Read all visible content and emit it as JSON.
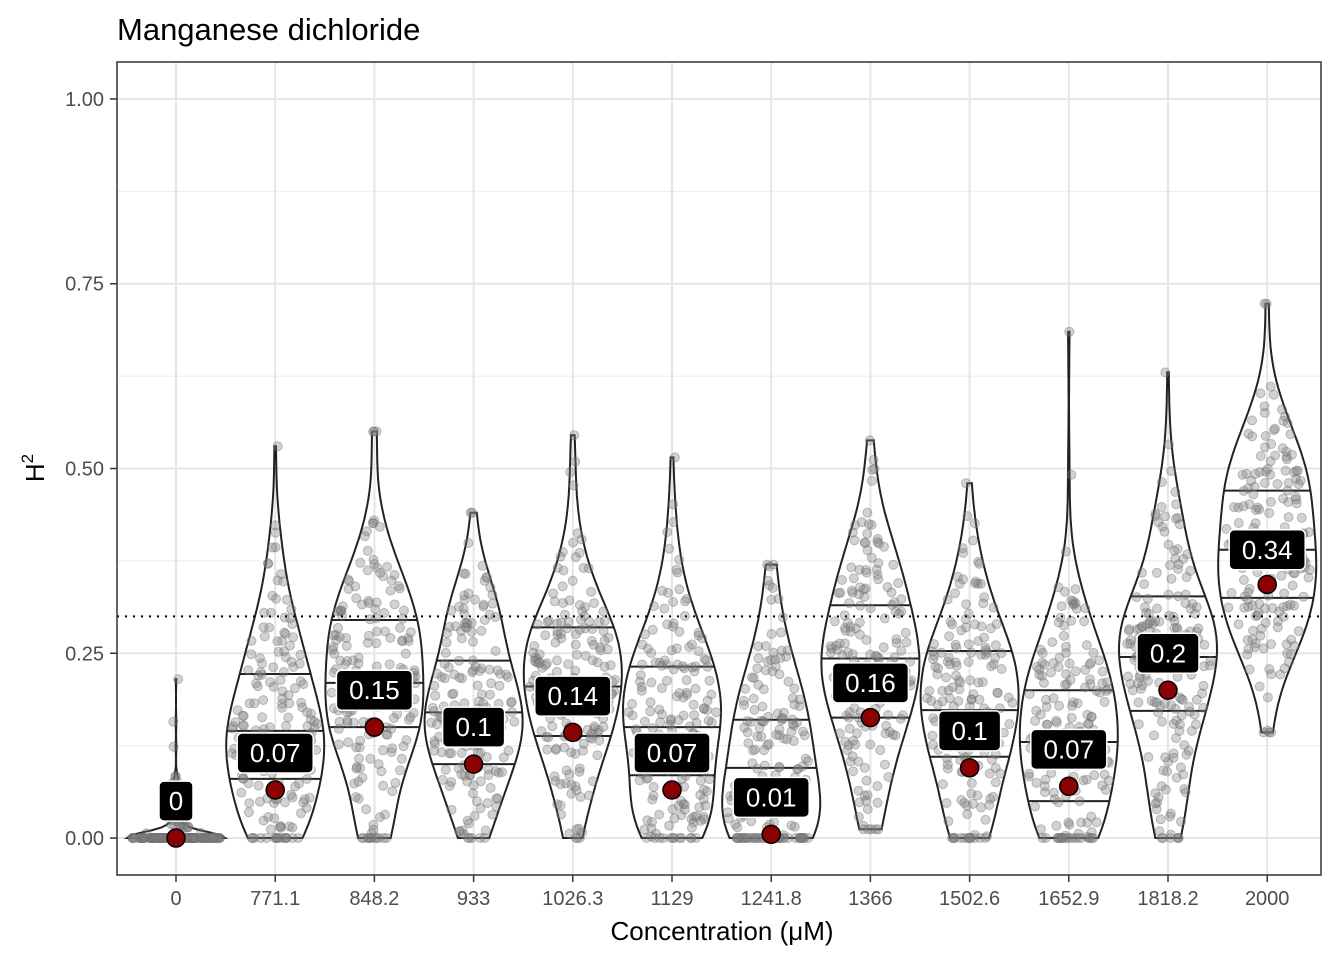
{
  "chart_data": {
    "type": "violin",
    "title": "Manganese dichloride",
    "xlabel": "Concentration (μM)",
    "ylabel": "H",
    "ylabel_superscript": "2",
    "ylim": [
      -0.05,
      1.05
    ],
    "yticks": [
      0.0,
      0.25,
      0.5,
      0.75,
      1.0
    ],
    "ytick_labels": [
      "0.00",
      "0.25",
      "0.50",
      "0.75",
      "1.00"
    ],
    "reference_line": 0.3,
    "grid": true,
    "categories": [
      "0",
      "771.1",
      "848.2",
      "933",
      "1026.3",
      "1129",
      "1241.8",
      "1366",
      "1502.6",
      "1652.9",
      "1818.2",
      "2000"
    ],
    "means": [
      0.0,
      0.065,
      0.15,
      0.1,
      0.143,
      0.065,
      0.005,
      0.163,
      0.095,
      0.07,
      0.2,
      0.343
    ],
    "labels": [
      "0",
      "0.07",
      "0.15",
      "0.1",
      "0.14",
      "0.07",
      "0.01",
      "0.16",
      "0.1",
      "0.07",
      "0.2",
      "0.34"
    ],
    "label_y": [
      0.05,
      0.115,
      0.2,
      0.15,
      0.192,
      0.115,
      0.055,
      0.21,
      0.145,
      0.12,
      0.25,
      0.39
    ],
    "ranges": [
      [
        0.0,
        0.215
      ],
      [
        0.0,
        0.53
      ],
      [
        0.0,
        0.55
      ],
      [
        0.0,
        0.44
      ],
      [
        0.0,
        0.545
      ],
      [
        0.0,
        0.515
      ],
      [
        0.0,
        0.37
      ],
      [
        0.012,
        0.538
      ],
      [
        0.0,
        0.48
      ],
      [
        0.0,
        0.685
      ],
      [
        0.0,
        0.63
      ],
      [
        0.143,
        0.723
      ]
    ],
    "quartiles": [
      [
        0.0,
        0.0,
        0.0
      ],
      [
        0.08,
        0.145,
        0.222
      ],
      [
        0.15,
        0.21,
        0.295
      ],
      [
        0.1,
        0.17,
        0.24
      ],
      [
        0.138,
        0.205,
        0.285
      ],
      [
        0.085,
        0.15,
        0.232
      ],
      [
        0.0,
        0.095,
        0.16
      ],
      [
        0.163,
        0.243,
        0.315
      ],
      [
        0.11,
        0.173,
        0.253
      ],
      [
        0.05,
        0.13,
        0.2
      ],
      [
        0.172,
        0.245,
        0.327
      ],
      [
        0.325,
        0.39,
        0.47
      ]
    ]
  }
}
